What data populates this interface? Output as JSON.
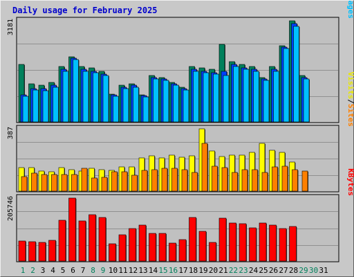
{
  "title": "Daily usage for February 2025",
  "colors": {
    "hits": "#00805c",
    "files": "#0040ff",
    "pages": "#00c0ff",
    "visits": "#ffff00",
    "sites": "#ff8000",
    "kbytes": "#ff0000",
    "weekend_day": "#00805c",
    "normal_day": "#000000"
  },
  "panels": {
    "top": {
      "max_label": "3181",
      "legend": [
        {
          "label": "Hits",
          "color": "#00805c"
        },
        {
          "label": "/",
          "color": "#000000"
        },
        {
          "label": "Files",
          "color": "#0040ff"
        },
        {
          "label": "/",
          "color": "#000000"
        },
        {
          "label": "Pages",
          "color": "#00c0ff"
        }
      ]
    },
    "mid": {
      "max_label": "387",
      "legend": [
        {
          "label": "Visits",
          "color": "#e8e800"
        },
        {
          "label": "/",
          "color": "#000000"
        },
        {
          "label": "Sites",
          "color": "#ff8000"
        }
      ]
    },
    "bot": {
      "max_label": "205746",
      "legend": [
        {
          "label": "KBytes",
          "color": "#ff0000"
        }
      ]
    }
  },
  "chart_data": {
    "type": "bar",
    "title": "Daily usage for February 2025",
    "categories": [
      "1",
      "2",
      "3",
      "4",
      "5",
      "6",
      "7",
      "8",
      "9",
      "10",
      "11",
      "12",
      "13",
      "14",
      "15",
      "16",
      "17",
      "18",
      "19",
      "20",
      "21",
      "22",
      "23",
      "24",
      "25",
      "26",
      "27",
      "28",
      "29",
      "30",
      "31"
    ],
    "weekend_days": [
      "1",
      "2",
      "8",
      "9",
      "15",
      "16",
      "22",
      "23",
      "29",
      "30"
    ],
    "charts": [
      {
        "name": "top",
        "ymax": 3181,
        "series": [
          {
            "name": "Hits",
            "values": [
              1800,
              1200,
              1150,
              1250,
              1750,
              2050,
              1750,
              1700,
              1600,
              880,
              1150,
              1200,
              840,
              1450,
              1400,
              1250,
              1100,
              1750,
              1700,
              1650,
              2450,
              1900,
              1800,
              1750,
              1400,
              1750,
              2400,
              3181,
              1450,
              null,
              null
            ]
          },
          {
            "name": "Files",
            "values": [
              850,
              1050,
              1050,
              1150,
              1650,
              2000,
              1650,
              1600,
              1500,
              850,
              1100,
              1150,
              820,
              1400,
              1350,
              1200,
              1050,
              1650,
              1600,
              1550,
              1600,
              1800,
              1700,
              1650,
              1350,
              1650,
              2350,
              3100,
              1400,
              null,
              null
            ]
          },
          {
            "name": "Pages",
            "values": [
              800,
              1000,
              980,
              1100,
              1600,
              1950,
              1580,
              1550,
              1450,
              800,
              1050,
              1100,
              790,
              1350,
              1300,
              1150,
              1000,
              1600,
              1550,
              1500,
              1450,
              1750,
              1650,
              1600,
              1300,
              1600,
              2300,
              3000,
              1350,
              null,
              null
            ]
          }
        ]
      },
      {
        "name": "mid",
        "ymax": 387,
        "series": [
          {
            "name": "Visits",
            "values": [
              145,
              148,
              125,
              122,
              145,
              135,
              125,
              140,
              135,
              130,
              150,
              150,
              205,
              220,
              205,
              225,
              210,
              220,
              387,
              250,
              215,
              225,
              225,
              240,
              295,
              255,
              240,
              180,
              null,
              null,
              null
            ]
          },
          {
            "name": "Sites",
            "values": [
              90,
              110,
              105,
              105,
              105,
              105,
              140,
              80,
              85,
              120,
              120,
              100,
              130,
              135,
              140,
              140,
              135,
              115,
              295,
              155,
              145,
              115,
              135,
              135,
              115,
              150,
              155,
              135,
              125,
              null,
              null
            ]
          }
        ]
      },
      {
        "name": "bot",
        "ymax": 205746,
        "series": [
          {
            "name": "KBytes",
            "values": [
              65000,
              64000,
              60000,
              67000,
              134000,
              205746,
              132000,
              152000,
              142000,
              56000,
              85000,
              106000,
              117000,
              90000,
              91000,
              59000,
              71000,
              142000,
              98000,
              62000,
              140000,
              124000,
              123000,
              109000,
              125000,
              118000,
              106000,
              113000,
              null,
              null,
              null
            ]
          }
        ]
      }
    ]
  }
}
